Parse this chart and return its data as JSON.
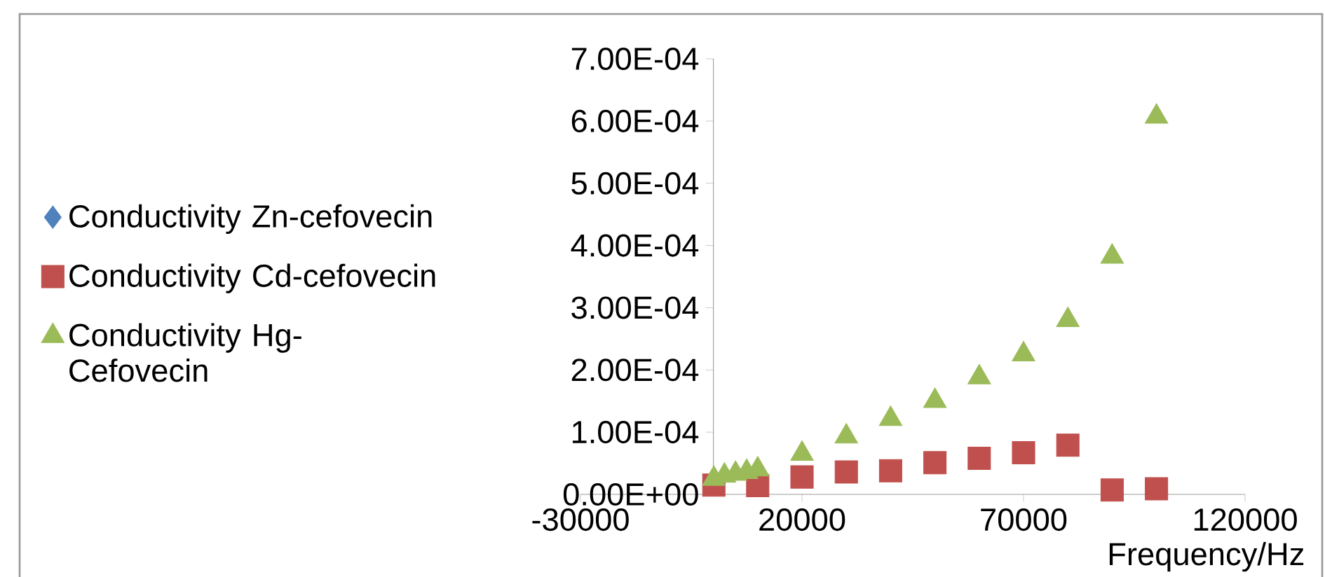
{
  "chart_data": {
    "type": "scatter",
    "xlabel": "Frequency/Hz",
    "xlim": [
      -30000,
      120000
    ],
    "ylim": [
      0,
      0.0007
    ],
    "xticks": [
      -30000,
      20000,
      70000,
      120000
    ],
    "yticks": [
      {
        "value": 0,
        "label": "0.00E+00"
      },
      {
        "value": 0.0001,
        "label": "1.00E-04"
      },
      {
        "value": 0.0002,
        "label": "2.00E-04"
      },
      {
        "value": 0.0003,
        "label": "3.00E-04"
      },
      {
        "value": 0.0004,
        "label": "4.00E-04"
      },
      {
        "value": 0.0005,
        "label": "5.00E-04"
      },
      {
        "value": 0.0006,
        "label": "6.00E-04"
      },
      {
        "value": 0.0007,
        "label": "7.00E-04"
      }
    ],
    "legend": "left",
    "grid": false,
    "series": [
      {
        "name": "Conductivity Zn-cefovecin",
        "color": "#4f81bd",
        "marker": "diamond"
      },
      {
        "name": "Conductivity Cd-cefovecin",
        "color": "#c0504d",
        "marker": "square",
        "x": [
          100,
          10000,
          20000,
          30000,
          40000,
          50000,
          60000,
          70000,
          80000,
          90000,
          100000
        ],
        "values": [
          1.5e-05,
          1.4e-05,
          2.8e-05,
          3.6e-05,
          3.8e-05,
          5.1e-05,
          5.8e-05,
          6.7e-05,
          7.9e-05,
          7e-06,
          9e-06
        ]
      },
      {
        "name": "Conductivity Hg-Cefovecin",
        "color": "#9bbb59",
        "marker": "triangle",
        "x": [
          100,
          2500,
          5000,
          7500,
          10000,
          20000,
          30000,
          40000,
          50000,
          60000,
          70000,
          80000,
          90000,
          100000
        ],
        "values": [
          2.5e-05,
          3e-05,
          3.3e-05,
          3.6e-05,
          4e-05,
          6.5e-05,
          9.3e-05,
          0.000121,
          0.00015,
          0.000188,
          0.000225,
          0.00028,
          0.000382,
          0.000607
        ]
      }
    ]
  }
}
